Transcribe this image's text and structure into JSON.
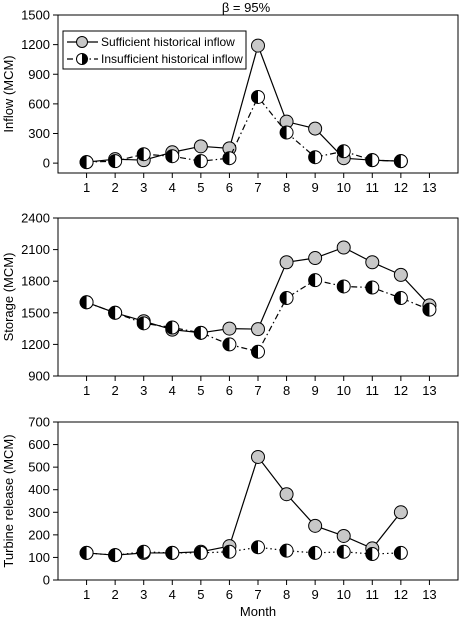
{
  "figure_title": "β = 95%",
  "legend": {
    "sufficient_label": "Sufficient historical inflow",
    "insufficient_label": "Insufficient historical inflow"
  },
  "colors": {
    "sufficient_fill": "#c8c8c8",
    "insufficient_fill": "#000000",
    "axis": "#000000"
  },
  "chart_data": [
    {
      "type": "line",
      "ylabel": "Inflow (MCM)",
      "xlabel": "",
      "xlim": [
        0,
        14
      ],
      "ylim": [
        -100,
        1500
      ],
      "x_ticks": [
        1,
        2,
        3,
        4,
        5,
        6,
        7,
        8,
        9,
        10,
        11,
        12,
        13
      ],
      "y_ticks": [
        0,
        300,
        600,
        900,
        1200,
        1500
      ],
      "grid": false,
      "legend_position": "top-left",
      "series": [
        {
          "name": "Sufficient historical inflow",
          "style": "solid",
          "x": [
            1,
            2,
            3,
            4,
            5,
            6,
            7,
            8,
            9,
            10,
            11,
            12
          ],
          "values": [
            10,
            40,
            30,
            110,
            170,
            150,
            1190,
            420,
            350,
            50,
            30,
            20
          ]
        },
        {
          "name": "Insufficient historical inflow",
          "style": "dashdot",
          "x": [
            1,
            2,
            3,
            4,
            5,
            6,
            7,
            8,
            9,
            10,
            11,
            12
          ],
          "values": [
            10,
            20,
            90,
            70,
            20,
            50,
            670,
            310,
            60,
            120,
            30,
            20
          ]
        }
      ]
    },
    {
      "type": "line",
      "ylabel": "Storage (MCM)",
      "xlabel": "",
      "xlim": [
        0,
        14
      ],
      "ylim": [
        900,
        2400
      ],
      "x_ticks": [
        1,
        2,
        3,
        4,
        5,
        6,
        7,
        8,
        9,
        10,
        11,
        12,
        13
      ],
      "y_ticks": [
        900,
        1200,
        1500,
        1800,
        2100,
        2400
      ],
      "grid": false,
      "series": [
        {
          "name": "Sufficient historical inflow",
          "style": "solid",
          "x": [
            1,
            2,
            3,
            4,
            5,
            6,
            7,
            8,
            9,
            10,
            11,
            12,
            13
          ],
          "values": [
            1600,
            1500,
            1420,
            1340,
            1310,
            1350,
            1345,
            1980,
            2020,
            2120,
            1980,
            1860,
            1570
          ]
        },
        {
          "name": "Insufficient historical inflow",
          "style": "dashdot",
          "x": [
            1,
            2,
            3,
            4,
            5,
            6,
            7,
            8,
            9,
            10,
            11,
            12,
            13
          ],
          "values": [
            1600,
            1500,
            1400,
            1360,
            1310,
            1200,
            1130,
            1640,
            1810,
            1750,
            1740,
            1640,
            1530
          ]
        }
      ]
    },
    {
      "type": "line",
      "ylabel": "Turbine release (MCM)",
      "xlabel": "Month",
      "xlim": [
        0,
        14
      ],
      "ylim": [
        0,
        700
      ],
      "x_ticks": [
        1,
        2,
        3,
        4,
        5,
        6,
        7,
        8,
        9,
        10,
        11,
        12,
        13
      ],
      "y_ticks": [
        0,
        100,
        200,
        300,
        400,
        500,
        600,
        700
      ],
      "grid": false,
      "series": [
        {
          "name": "Sufficient historical inflow",
          "style": "solid",
          "x": [
            1,
            2,
            3,
            4,
            5,
            6,
            7,
            8,
            9,
            10,
            11,
            12
          ],
          "values": [
            120,
            110,
            120,
            120,
            125,
            150,
            545,
            380,
            240,
            195,
            140,
            300
          ]
        },
        {
          "name": "Insufficient historical inflow",
          "style": "dotted",
          "x": [
            1,
            2,
            3,
            4,
            5,
            6,
            7,
            8,
            9,
            10,
            11,
            12
          ],
          "values": [
            120,
            110,
            125,
            120,
            120,
            125,
            145,
            130,
            120,
            125,
            115,
            120
          ]
        }
      ]
    }
  ]
}
